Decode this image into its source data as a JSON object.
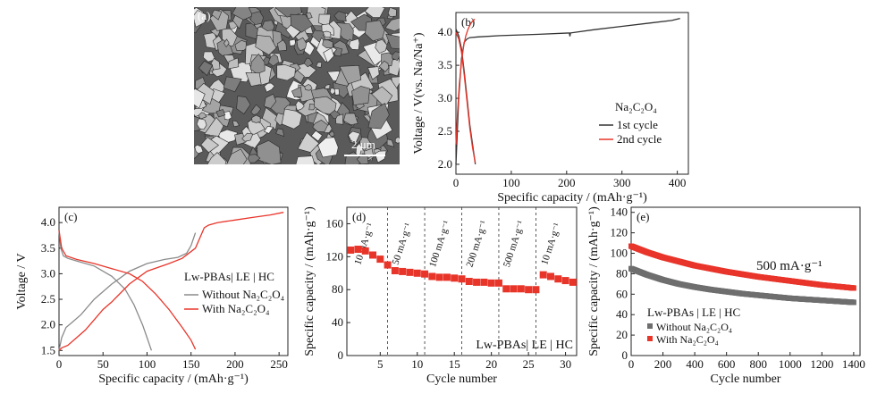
{
  "panels": {
    "a": {
      "tag": "(a)",
      "scale_label": "2 μm"
    }
  },
  "chart_data": [
    {
      "id": "b",
      "tag": "(b)",
      "type": "line",
      "xlabel": "Specific  capacity / (mAh·g⁻¹)",
      "ylabel": "Voltage / V(vs. Na/Na⁺)",
      "xlim": [
        0,
        420
      ],
      "ylim": [
        1.85,
        4.3
      ],
      "xticks": [
        0,
        100,
        200,
        300,
        400
      ],
      "yticks": [
        2.0,
        2.5,
        3.0,
        3.5,
        4.0
      ],
      "legend_title": "Na₂C₂O₄",
      "legend_position": "right",
      "series": [
        {
          "name": "1st cycle",
          "color": "#333333",
          "x": [
            0,
            5,
            10,
            15,
            20,
            25,
            40,
            80,
            150,
            205,
            206,
            207,
            250,
            300,
            350,
            390,
            405
          ],
          "y": [
            2.0,
            3.0,
            3.6,
            3.85,
            3.9,
            3.92,
            3.93,
            3.95,
            3.97,
            3.99,
            3.94,
            3.99,
            4.04,
            4.09,
            4.14,
            4.18,
            4.21
          ]
        },
        {
          "name": "",
          "color": "#333333",
          "x": [
            0,
            5,
            10,
            15,
            20,
            25,
            30,
            35
          ],
          "y": [
            4.05,
            3.95,
            3.75,
            3.4,
            3.0,
            2.6,
            2.3,
            2.0
          ]
        },
        {
          "name": "2nd cycle",
          "color": "#e8352a",
          "x": [
            0,
            3,
            6,
            10,
            14,
            18,
            22,
            26,
            30,
            34
          ],
          "y": [
            2.3,
            2.8,
            3.2,
            3.55,
            3.8,
            3.95,
            4.05,
            4.12,
            4.17,
            4.2
          ]
        },
        {
          "name": "",
          "color": "#e8352a",
          "x": [
            0,
            5,
            10,
            15,
            20,
            25,
            30,
            35
          ],
          "y": [
            4.0,
            3.9,
            3.7,
            3.35,
            2.95,
            2.55,
            2.25,
            2.02
          ]
        }
      ]
    },
    {
      "id": "c",
      "tag": "(c)",
      "type": "line",
      "xlabel": "Specific capacity / (mAh·g⁻¹)",
      "ylabel": "Voltage / V",
      "xlim": [
        0,
        260
      ],
      "ylim": [
        1.4,
        4.3
      ],
      "xticks": [
        0,
        50,
        100,
        150,
        200,
        250
      ],
      "yticks": [
        1.5,
        2.0,
        2.5,
        3.0,
        3.5,
        4.0
      ],
      "legend_title": "Lw-PBAs| LE | HC",
      "legend_position": "right",
      "series": [
        {
          "name": "Without Na₂C₂O₄",
          "color": "#8a8a8a",
          "x": [
            0,
            3,
            8,
            15,
            25,
            40,
            60,
            80,
            100,
            120,
            135,
            145,
            150,
            155
          ],
          "y": [
            1.5,
            1.75,
            1.95,
            2.05,
            2.2,
            2.5,
            2.8,
            3.05,
            3.2,
            3.28,
            3.32,
            3.4,
            3.55,
            3.8
          ]
        },
        {
          "name": "",
          "color": "#8a8a8a",
          "x": [
            0,
            2,
            5,
            10,
            20,
            40,
            60,
            75,
            85,
            95,
            100,
            105
          ],
          "y": [
            3.85,
            3.5,
            3.35,
            3.3,
            3.25,
            3.15,
            2.95,
            2.7,
            2.4,
            2.0,
            1.75,
            1.5
          ]
        },
        {
          "name": "With Na₂C₂O₄",
          "color": "#e8352a",
          "x": [
            0,
            3,
            10,
            20,
            30,
            40,
            50,
            60,
            80,
            100,
            125,
            140,
            155,
            165,
            170,
            180,
            200,
            220,
            240,
            255
          ],
          "y": [
            1.5,
            1.55,
            1.6,
            1.75,
            1.9,
            2.1,
            2.3,
            2.45,
            2.8,
            3.05,
            3.2,
            3.3,
            3.5,
            3.9,
            3.95,
            4.0,
            4.05,
            4.1,
            4.15,
            4.2
          ]
        },
        {
          "name": "",
          "color": "#e8352a",
          "x": [
            0,
            3,
            8,
            20,
            40,
            60,
            80,
            95,
            110,
            125,
            140,
            150,
            155
          ],
          "y": [
            3.85,
            3.5,
            3.35,
            3.28,
            3.2,
            3.1,
            3.0,
            2.85,
            2.6,
            2.3,
            1.95,
            1.7,
            1.52
          ]
        }
      ]
    },
    {
      "id": "d",
      "tag": "(d)",
      "type": "scatter",
      "xlabel": "Cycle number",
      "ylabel": "Specific capacity / (mAh·g⁻¹)",
      "xlim": [
        0.5,
        31.5
      ],
      "ylim": [
        0,
        180
      ],
      "xticks": [
        5,
        10,
        15,
        20,
        25,
        30
      ],
      "yticks": [
        0,
        40,
        80,
        120,
        160
      ],
      "annotation": "Lw-PBAs| LE | HC",
      "dividers": [
        6,
        11,
        16,
        21,
        26
      ],
      "rate_labels": [
        {
          "text": "10 mA·g⁻¹",
          "x": 3.2
        },
        {
          "text": "50 mA·g⁻¹",
          "x": 8.3
        },
        {
          "text": "100 mA·g⁻¹",
          "x": 13.4
        },
        {
          "text": "200 mA·g⁻¹",
          "x": 18.4
        },
        {
          "text": "500 mA·g⁻¹",
          "x": 23.4
        },
        {
          "text": "10 mA·g⁻¹",
          "x": 28.4
        }
      ],
      "series": [
        {
          "name": "",
          "color": "#e8352a",
          "x": [
            1,
            2,
            3,
            4,
            5,
            6,
            7,
            8,
            9,
            10,
            11,
            12,
            13,
            14,
            15,
            16,
            17,
            18,
            19,
            20,
            21,
            22,
            23,
            24,
            25,
            26,
            27,
            28,
            29,
            30,
            31
          ],
          "y": [
            128,
            129,
            127,
            122,
            117,
            110,
            103,
            102,
            101,
            100,
            99,
            96,
            95,
            95,
            94,
            93,
            90,
            89,
            89,
            88,
            88,
            81,
            81,
            81,
            80,
            80,
            98,
            96,
            93,
            91,
            89
          ]
        }
      ]
    },
    {
      "id": "e",
      "tag": "(e)",
      "type": "scatter",
      "xlabel": "Cycle number",
      "ylabel": "Specific capacity / (mAh·g⁻¹)",
      "xlim": [
        0,
        1440
      ],
      "ylim": [
        0,
        145
      ],
      "xticks": [
        0,
        200,
        400,
        600,
        800,
        1000,
        1200,
        1400
      ],
      "yticks": [
        0,
        20,
        40,
        60,
        80,
        100,
        120,
        140
      ],
      "annotation": "500 mA·g⁻¹",
      "legend_title": "Lw-PBAs | LE | HC",
      "legend_position": "bottom-left",
      "series": [
        {
          "name": "Without Na₂C₂O₄",
          "color": "#6e6e6e",
          "decay": 0.00051,
          "x": [
            0,
            100,
            200,
            300,
            400,
            500,
            600,
            700,
            800,
            900,
            1000,
            1100,
            1200,
            1300,
            1400
          ],
          "y": [
            85,
            79,
            74,
            70,
            67,
            64.5,
            62.5,
            60.5,
            59,
            57.5,
            56,
            55,
            54,
            53,
            52
          ]
        },
        {
          "name": "With Na₂C₂O₄",
          "color": "#e8352a",
          "decay": 0.0004,
          "x": [
            0,
            100,
            200,
            300,
            400,
            500,
            600,
            700,
            800,
            900,
            1000,
            1100,
            1200,
            1300,
            1400
          ],
          "y": [
            107,
            101,
            96,
            92,
            88,
            85,
            82,
            79.5,
            77,
            75,
            73,
            71,
            69,
            67.5,
            66
          ]
        }
      ]
    }
  ]
}
